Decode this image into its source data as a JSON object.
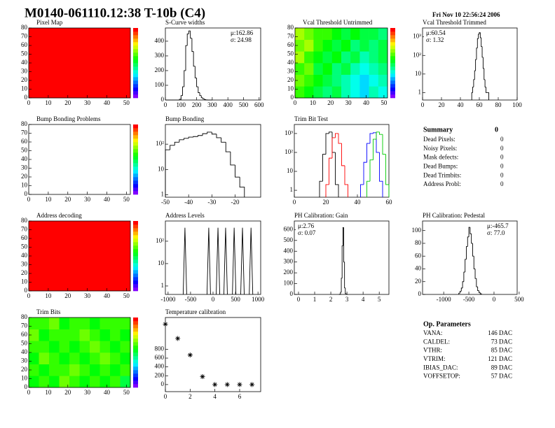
{
  "title": "M0140-061110.12:38 T-10b (C4)",
  "date": "Fri Nov 10 22:56:24 2006",
  "chart_data": [
    {
      "type": "heatmap",
      "title": "Pixel Map",
      "xlim": [
        0,
        52
      ],
      "ylim": [
        0,
        80
      ],
      "xticks": [
        0,
        10,
        20,
        30,
        40,
        50
      ],
      "yticks": [
        0,
        10,
        20,
        30,
        40,
        50,
        60,
        70,
        80
      ],
      "zlim": [
        0,
        1
      ],
      "z": [
        [
          1
        ]
      ]
    },
    {
      "type": "histogram",
      "title": "S-Curve widths",
      "xlim": [
        0,
        610
      ],
      "ylim": [
        0,
        490
      ],
      "xticks": [
        0,
        100,
        200,
        300,
        400,
        500,
        600
      ],
      "yticks": [
        0,
        100,
        200,
        300,
        400
      ],
      "color": "#000000",
      "bins": [
        0,
        10,
        20,
        30,
        40,
        50,
        60,
        70,
        80,
        90,
        100,
        110,
        120,
        130,
        140,
        150,
        160,
        170,
        180,
        190,
        200,
        210,
        220,
        230,
        240,
        250,
        260,
        270,
        280,
        290,
        300
      ],
      "values": [
        0,
        0,
        0,
        0,
        0,
        0,
        0,
        0,
        0,
        5,
        30,
        90,
        200,
        370,
        450,
        470,
        420,
        330,
        230,
        150,
        90,
        50,
        30,
        15,
        8,
        3,
        1,
        0,
        0,
        0
      ],
      "stats": [
        "μ:162.86",
        "σ: 24.98"
      ],
      "stats_corner": "top-right"
    },
    {
      "type": "heatmap",
      "title": "Vcal Threshold Untrimmed",
      "xlim": [
        0,
        52
      ],
      "ylim": [
        0,
        80
      ],
      "xticks": [
        0,
        10,
        20,
        30,
        40,
        50
      ],
      "yticks": [
        0,
        10,
        20,
        30,
        40,
        50,
        60,
        70,
        80
      ],
      "zlim": [
        0,
        1
      ],
      "z": [
        [
          0.6,
          0.55,
          0.5,
          0.45,
          0.5,
          0.4,
          0.35,
          0.3,
          0.4,
          0.35
        ],
        [
          0.65,
          0.6,
          0.55,
          0.5,
          0.45,
          0.4,
          0.35,
          0.3,
          0.35,
          0.4
        ],
        [
          0.6,
          0.65,
          0.5,
          0.55,
          0.45,
          0.5,
          0.4,
          0.35,
          0.4,
          0.45
        ],
        [
          0.7,
          0.6,
          0.55,
          0.5,
          0.55,
          0.45,
          0.5,
          0.4,
          0.45,
          0.5
        ],
        [
          0.65,
          0.7,
          0.6,
          0.55,
          0.5,
          0.55,
          0.45,
          0.5,
          0.45,
          0.5
        ],
        [
          0.7,
          0.65,
          0.6,
          0.6,
          0.55,
          0.5,
          0.55,
          0.5,
          0.5,
          0.45
        ]
      ]
    },
    {
      "type": "histogram",
      "title": "Vcal Threshold Trimmed",
      "logy": true,
      "xlim": [
        0,
        100
      ],
      "ylim": [
        0.4,
        3000
      ],
      "xticks": [
        0,
        20,
        40,
        60,
        80,
        100
      ],
      "yticks": [
        1,
        10,
        {
          "value": 100,
          "label": "10²"
        },
        {
          "value": 1000,
          "label": "10³"
        }
      ],
      "color": "#000000",
      "bins": [
        52,
        53,
        54,
        55,
        56,
        57,
        58,
        59,
        60,
        61,
        62,
        63,
        64,
        65,
        66,
        67,
        68,
        69,
        70
      ],
      "values": [
        1,
        2,
        5,
        15,
        60,
        250,
        800,
        1400,
        1700,
        900,
        300,
        80,
        20,
        5,
        2,
        1,
        1,
        1
      ],
      "stats": [
        "μ:60.54",
        "σ: 1.32"
      ],
      "stats_corner": "top-left"
    },
    {
      "type": "heatmap",
      "title": "Bump Bonding Problems",
      "xlim": [
        0,
        52
      ],
      "ylim": [
        0,
        80
      ],
      "xticks": [
        0,
        10,
        20,
        30,
        40,
        50
      ],
      "yticks": [
        0,
        10,
        20,
        30,
        40,
        50,
        60,
        70,
        80
      ],
      "zlim": [
        0,
        1
      ]
    },
    {
      "type": "histogram",
      "title": "Bump Bonding",
      "logy": true,
      "xlim": [
        -50,
        -9
      ],
      "ylim": [
        0.8,
        600
      ],
      "xticks": [
        -50,
        -40,
        -30,
        -20
      ],
      "yticks": [
        1,
        10,
        {
          "value": 100,
          "label": "10²"
        }
      ],
      "color": "#000000",
      "bins": [
        -50,
        -48,
        -46,
        -44,
        -42,
        -40,
        -38,
        -36,
        -34,
        -32,
        -30,
        -28,
        -26,
        -24,
        -22,
        -20,
        -18,
        -16
      ],
      "values": [
        60,
        90,
        120,
        150,
        170,
        190,
        200,
        220,
        260,
        300,
        250,
        180,
        120,
        50,
        15,
        5,
        2
      ]
    },
    {
      "type": "histogram",
      "title": "Trim Bit Test",
      "logy": true,
      "xlim": [
        0,
        60
      ],
      "ylim": [
        0.43,
        3000
      ],
      "xticks": [
        0,
        20,
        40,
        60
      ],
      "yticks": [
        1,
        10,
        {
          "value": 100,
          "label": "10²"
        },
        {
          "value": 1000,
          "label": "10³"
        }
      ],
      "series": [
        {
          "color": "#000000",
          "bins": [
            16,
            18,
            20,
            22,
            24,
            26,
            28
          ],
          "values": [
            3,
            80,
            1000,
            1200,
            100,
            2
          ]
        },
        {
          "color": "#ff0000",
          "bins": [
            20,
            22,
            24,
            26,
            28,
            30,
            32,
            34
          ],
          "values": [
            2,
            50,
            600,
            1000,
            300,
            20,
            2
          ]
        },
        {
          "color": "#0000ff",
          "bins": [
            42,
            44,
            46,
            48,
            50,
            52,
            54,
            56
          ],
          "values": [
            2,
            30,
            300,
            1000,
            1100,
            100,
            3
          ]
        },
        {
          "color": "#00cc00",
          "bins": [
            46,
            48,
            50,
            52,
            54,
            56,
            58,
            60
          ],
          "values": [
            3,
            40,
            500,
            1200,
            900,
            80,
            2
          ]
        }
      ]
    },
    {
      "type": "heatmap",
      "title": "Address decoding",
      "xlim": [
        0,
        52
      ],
      "ylim": [
        0,
        80
      ],
      "xticks": [
        0,
        10,
        20,
        30,
        40,
        50
      ],
      "yticks": [
        0,
        10,
        20,
        30,
        40,
        50,
        60,
        70,
        80
      ],
      "zlim": [
        0,
        1
      ],
      "z": [
        [
          1
        ]
      ]
    },
    {
      "type": "spike",
      "title": "Address Levels",
      "logy": true,
      "xlim": [
        -1060,
        1060
      ],
      "ylim": [
        0.42,
        800
      ],
      "xticks": [
        -1000,
        -500,
        0,
        500,
        1000
      ],
      "yticks": [
        1,
        10,
        {
          "value": 100,
          "label": "10²"
        }
      ],
      "color": "#000000",
      "x": [
        -625,
        -95,
        110,
        280,
        470,
        655,
        845
      ],
      "values": [
        400,
        400,
        400,
        400,
        400,
        400,
        400
      ]
    },
    {
      "type": "histogram",
      "title": "PH Calibration: Gain",
      "xlim": [
        -0.26,
        5.6
      ],
      "ylim": [
        0,
        680
      ],
      "xticks": [
        0,
        1,
        2,
        3,
        4,
        5
      ],
      "yticks": [
        0,
        100,
        200,
        300,
        400,
        500,
        600
      ],
      "color": "#000000",
      "bins": [
        2.5,
        2.55,
        2.6,
        2.65,
        2.7,
        2.75,
        2.8,
        2.85,
        2.9,
        2.95,
        3.0,
        3.05
      ],
      "values": [
        0,
        2,
        20,
        150,
        450,
        620,
        300,
        60,
        8,
        1,
        0
      ],
      "stats": [
        "μ:2.76",
        "σ: 0.07"
      ],
      "stats_corner": "top-left"
    },
    {
      "type": "histogram",
      "title": "PH Calibration: Pedestal",
      "xlim": [
        -1420,
        460
      ],
      "ylim": [
        0,
        115
      ],
      "xticks": [
        -1000,
        -500,
        0,
        500
      ],
      "yticks": [
        0,
        20,
        40,
        60,
        80,
        100
      ],
      "color": "#000000",
      "bins": [
        -700,
        -675,
        -650,
        -625,
        -600,
        -575,
        -550,
        -525,
        -500,
        -475,
        -450,
        -425,
        -400,
        -375,
        -350,
        -325,
        -300,
        -275,
        -250
      ],
      "values": [
        2,
        5,
        10,
        20,
        35,
        55,
        75,
        90,
        105,
        95,
        80,
        60,
        40,
        25,
        12,
        6,
        3,
        1
      ],
      "stats": [
        "μ:-465.7",
        "σ: 77.0"
      ],
      "stats_corner": "top-right"
    },
    {
      "type": "heatmap",
      "title": "Trim Bits",
      "xlim": [
        0,
        52
      ],
      "ylim": [
        0,
        80
      ],
      "xticks": [
        0,
        10,
        20,
        30,
        40,
        50
      ],
      "yticks": [
        0,
        10,
        20,
        30,
        40,
        50,
        60,
        70,
        80
      ],
      "zlim": [
        0,
        1
      ],
      "z": [
        [
          0.55,
          0.6,
          0.55,
          0.65,
          0.6,
          0.55,
          0.6,
          0.55,
          0.6,
          0.5
        ],
        [
          0.6,
          0.55,
          0.6,
          0.6,
          0.65,
          0.6,
          0.55,
          0.6,
          0.55,
          0.6
        ],
        [
          0.55,
          0.65,
          0.6,
          0.55,
          0.6,
          0.55,
          0.6,
          0.65,
          0.6,
          0.55
        ],
        [
          0.6,
          0.6,
          0.55,
          0.6,
          0.55,
          0.6,
          0.65,
          0.6,
          0.55,
          0.6
        ],
        [
          0.65,
          0.55,
          0.6,
          0.6,
          0.6,
          0.65,
          0.6,
          0.55,
          0.6,
          0.55
        ],
        [
          0.6,
          0.6,
          0.65,
          0.55,
          0.6,
          0.6,
          0.55,
          0.6,
          0.6,
          0.6
        ]
      ]
    },
    {
      "type": "scatter",
      "title": "Temperature calibration",
      "xlim": [
        0,
        7.7
      ],
      "ylim": [
        -160,
        1520
      ],
      "xticks": [
        0,
        2,
        4,
        6
      ],
      "yticks": [
        0,
        200,
        400,
        600,
        800
      ],
      "color": "#000000",
      "x": [
        0,
        1,
        2,
        3,
        4,
        5,
        6,
        7
      ],
      "values": [
        1370,
        1045,
        670,
        180,
        0,
        0,
        0,
        0
      ]
    }
  ],
  "summary": {
    "title": "Summary",
    "value": 0,
    "rows": [
      [
        "Dead Pixels:",
        0
      ],
      [
        "Noisy Pixels:",
        0
      ],
      [
        "Mask defects:",
        0
      ],
      [
        "Dead Bumps:",
        0
      ],
      [
        "Dead Trimbits:",
        0
      ],
      [
        "Address Probl:",
        0
      ]
    ]
  },
  "op_parameters": {
    "title": "Op. Parameters",
    "rows": [
      [
        "VANA:",
        "146 DAC"
      ],
      [
        "CALDEL:",
        "73 DAC"
      ],
      [
        "VTHR:",
        "85 DAC"
      ],
      [
        "VTRIM:",
        "121 DAC"
      ],
      [
        "IBIAS_DAC:",
        "89 DAC"
      ],
      [
        "VOFFSETOP:",
        "57 DAC"
      ]
    ]
  }
}
